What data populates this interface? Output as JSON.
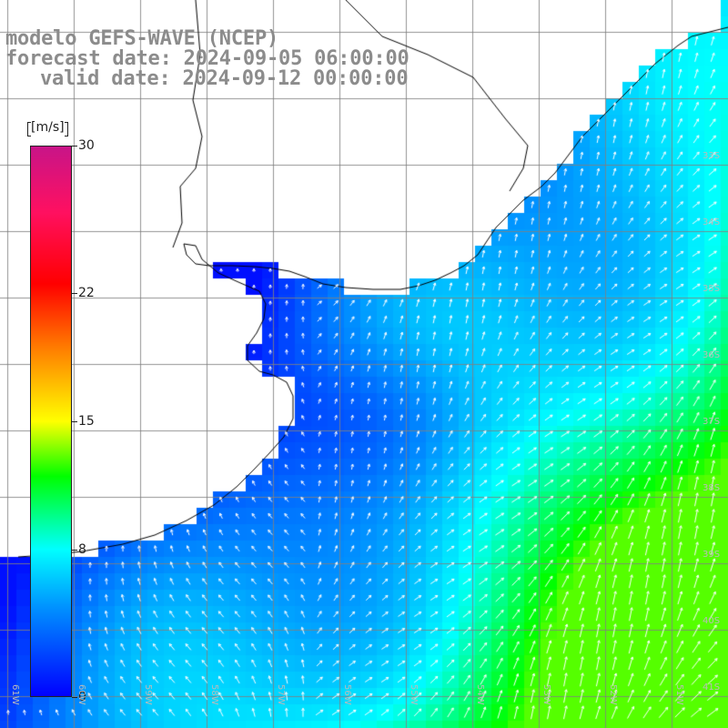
{
  "title": {
    "line1": "modelo GEFS-WAVE (NCEP)",
    "line2": "forecast date: 2024-09-05 06:00:00",
    "line3": "valid date: 2024-09-12 00:00:00"
  },
  "colorbar": {
    "unit": "[m/s]",
    "ticks": [
      {
        "label": "30",
        "value": 30
      },
      {
        "label": "22",
        "value": 22
      },
      {
        "label": "15",
        "value": 15
      },
      {
        "label": "8",
        "value": 8
      },
      {
        "label": "0",
        "value": 0
      }
    ],
    "range": [
      0,
      30
    ],
    "colors": [
      "#0000ff",
      "#0090ff",
      "#00ffff",
      "#00ff00",
      "#ffff00",
      "#ff8000",
      "#ff0000",
      "#c81488"
    ]
  },
  "lat_labels": [
    "33S",
    "34S",
    "35S",
    "36S",
    "37S",
    "38S",
    "39S",
    "40S",
    "41S"
  ],
  "lon_labels": [
    "61W",
    "60W",
    "59W",
    "58W",
    "57W",
    "56W",
    "55W",
    "54W",
    "53W",
    "52W",
    "51W"
  ],
  "map": {
    "land_color": "#ffffff",
    "grid_color": "#808080",
    "coast_color": "#000000",
    "arrow_color": "#ffffff"
  }
}
